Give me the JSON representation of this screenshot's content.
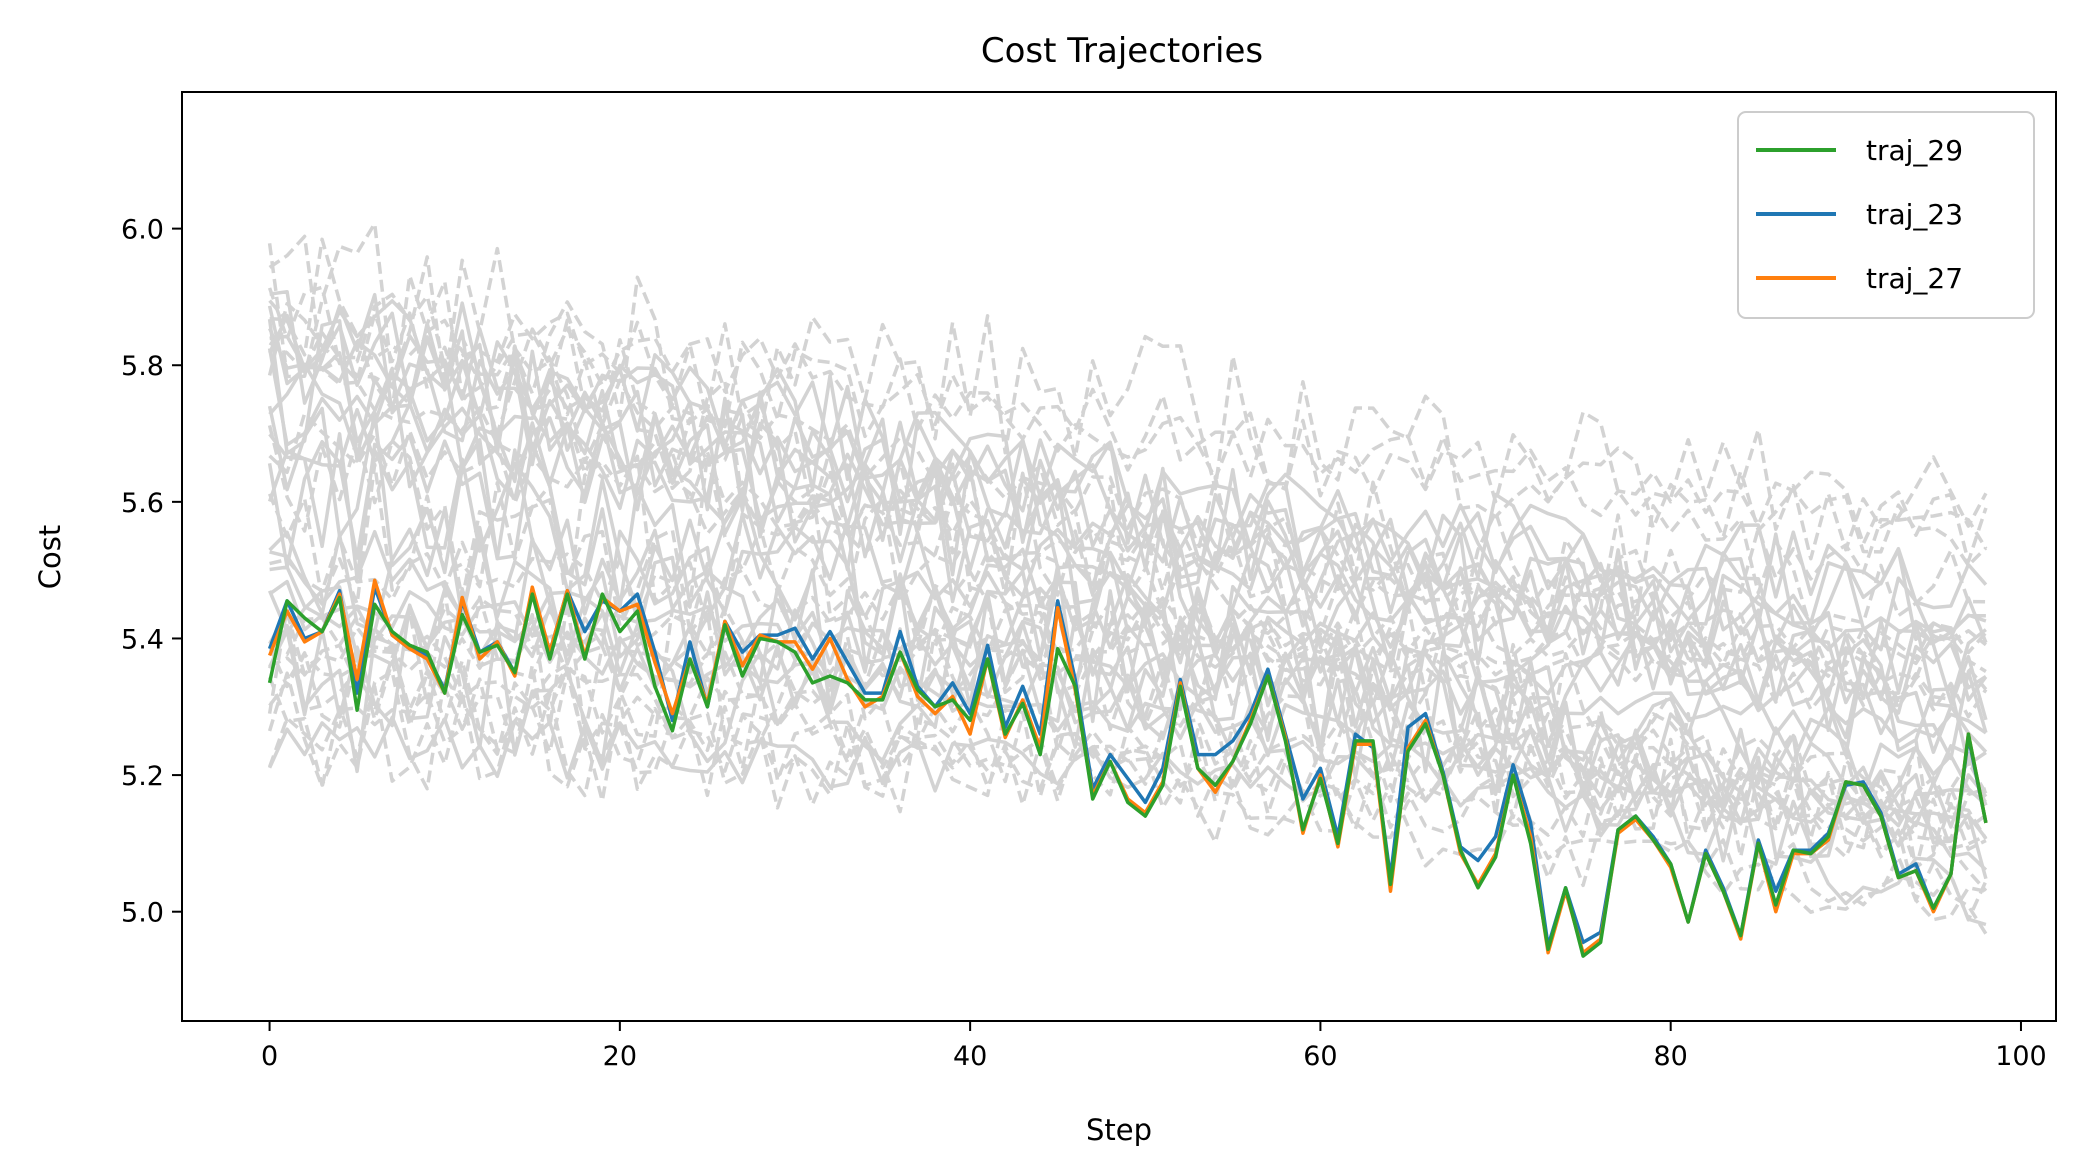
{
  "chart_data": {
    "type": "line",
    "title": "Cost Trajectories",
    "xlabel": "Step",
    "ylabel": "Cost",
    "xlim": [
      -5,
      102
    ],
    "ylim": [
      4.84,
      6.2
    ],
    "xticks": [
      0,
      20,
      40,
      60,
      80,
      100
    ],
    "yticks": [
      5.0,
      5.2,
      5.4,
      5.6,
      5.8,
      6.0
    ],
    "ytick_labels": [
      "5.0",
      "5.2",
      "5.4",
      "5.6",
      "5.8",
      "6.0"
    ],
    "grid": false,
    "legend_position": "top-right",
    "background_series_color": "#d3d3d3",
    "background_series_count": 40,
    "series": [
      {
        "name": "traj_29",
        "color": "#2ca02c",
        "x": [
          0,
          1,
          2,
          3,
          4,
          5,
          6,
          7,
          8,
          9,
          10,
          11,
          12,
          13,
          14,
          15,
          16,
          17,
          18,
          19,
          20,
          21,
          22,
          23,
          24,
          25,
          26,
          27,
          28,
          29,
          30,
          31,
          32,
          33,
          34,
          35,
          36,
          37,
          38,
          39,
          40,
          41,
          42,
          43,
          44,
          45,
          46,
          47,
          48,
          49,
          50,
          51,
          52,
          53,
          54,
          55,
          56,
          57,
          58,
          59,
          60,
          61,
          62,
          63,
          64,
          65,
          66,
          67,
          68,
          69,
          70,
          71,
          72,
          73,
          74,
          75,
          76,
          77,
          78,
          79,
          80,
          81,
          82,
          83,
          84,
          85,
          86,
          87,
          88,
          89,
          90,
          91,
          92,
          93,
          94,
          95,
          96,
          97,
          98
        ],
        "values": [
          5.335,
          5.455,
          5.43,
          5.41,
          5.46,
          5.295,
          5.45,
          5.41,
          5.39,
          5.38,
          5.32,
          5.435,
          5.38,
          5.39,
          5.35,
          5.465,
          5.37,
          5.465,
          5.37,
          5.465,
          5.41,
          5.44,
          5.33,
          5.265,
          5.37,
          5.3,
          5.42,
          5.345,
          5.4,
          5.395,
          5.38,
          5.335,
          5.345,
          5.335,
          5.31,
          5.31,
          5.38,
          5.325,
          5.3,
          5.31,
          5.28,
          5.37,
          5.26,
          5.305,
          5.23,
          5.385,
          5.33,
          5.165,
          5.22,
          5.16,
          5.14,
          5.185,
          5.33,
          5.21,
          5.185,
          5.22,
          5.275,
          5.345,
          5.25,
          5.12,
          5.195,
          5.1,
          5.25,
          5.25,
          5.04,
          5.235,
          5.275,
          5.2,
          5.09,
          5.035,
          5.08,
          5.2,
          5.1,
          4.945,
          5.035,
          4.935,
          4.955,
          5.12,
          5.14,
          5.105,
          5.07,
          4.985,
          5.085,
          5.03,
          4.965,
          5.1,
          5.01,
          5.09,
          5.085,
          5.11,
          5.19,
          5.185,
          5.14,
          5.05,
          5.06,
          5.005,
          5.055,
          5.26,
          5.13
        ]
      },
      {
        "name": "traj_23",
        "color": "#1f77b4",
        "x": [
          0,
          1,
          2,
          3,
          4,
          5,
          6,
          7,
          8,
          9,
          10,
          11,
          12,
          13,
          14,
          15,
          16,
          17,
          18,
          19,
          20,
          21,
          22,
          23,
          24,
          25,
          26,
          27,
          28,
          29,
          30,
          31,
          32,
          33,
          34,
          35,
          36,
          37,
          38,
          39,
          40,
          41,
          42,
          43,
          44,
          45,
          46,
          47,
          48,
          49,
          50,
          51,
          52,
          53,
          54,
          55,
          56,
          57,
          58,
          59,
          60,
          61,
          62,
          63,
          64,
          65,
          66,
          67,
          68,
          69,
          70,
          71,
          72,
          73,
          74,
          75,
          76,
          77,
          78,
          79,
          80,
          81,
          82,
          83,
          84,
          85,
          86,
          87,
          88,
          89,
          90,
          91,
          92,
          93,
          94,
          95,
          96,
          97,
          98
        ],
        "values": [
          5.385,
          5.455,
          5.4,
          5.41,
          5.47,
          5.32,
          5.475,
          5.405,
          5.385,
          5.375,
          5.325,
          5.455,
          5.38,
          5.395,
          5.35,
          5.47,
          5.38,
          5.47,
          5.41,
          5.455,
          5.44,
          5.465,
          5.38,
          5.28,
          5.395,
          5.3,
          5.425,
          5.38,
          5.405,
          5.405,
          5.415,
          5.37,
          5.41,
          5.365,
          5.32,
          5.32,
          5.41,
          5.33,
          5.3,
          5.335,
          5.29,
          5.39,
          5.27,
          5.33,
          5.26,
          5.455,
          5.34,
          5.18,
          5.23,
          5.195,
          5.16,
          5.21,
          5.34,
          5.23,
          5.23,
          5.25,
          5.29,
          5.355,
          5.26,
          5.165,
          5.21,
          5.11,
          5.26,
          5.24,
          5.05,
          5.27,
          5.29,
          5.205,
          5.095,
          5.075,
          5.11,
          5.215,
          5.13,
          4.95,
          5.035,
          4.955,
          4.97,
          5.12,
          5.14,
          5.11,
          5.07,
          4.985,
          5.09,
          5.035,
          4.965,
          5.105,
          5.03,
          5.09,
          5.09,
          5.115,
          5.185,
          5.19,
          5.145,
          5.055,
          5.07,
          5.005,
          5.055,
          5.255,
          5.13
        ]
      },
      {
        "name": "traj_27",
        "color": "#ff7f0e",
        "x": [
          0,
          1,
          2,
          3,
          4,
          5,
          6,
          7,
          8,
          9,
          10,
          11,
          12,
          13,
          14,
          15,
          16,
          17,
          18,
          19,
          20,
          21,
          22,
          23,
          24,
          25,
          26,
          27,
          28,
          29,
          30,
          31,
          32,
          33,
          34,
          35,
          36,
          37,
          38,
          39,
          40,
          41,
          42,
          43,
          44,
          45,
          46,
          47,
          48,
          49,
          50,
          51,
          52,
          53,
          54,
          55,
          56,
          57,
          58,
          59,
          60,
          61,
          62,
          63,
          64,
          65,
          66,
          67,
          68,
          69,
          70,
          71,
          72,
          73,
          74,
          75,
          76,
          77,
          78,
          79,
          80,
          81,
          82,
          83,
          84,
          85,
          86,
          87,
          88,
          89,
          90,
          91,
          92,
          93,
          94,
          95,
          96,
          97,
          98
        ],
        "values": [
          5.375,
          5.44,
          5.395,
          5.41,
          5.465,
          5.34,
          5.485,
          5.405,
          5.385,
          5.37,
          5.32,
          5.46,
          5.37,
          5.395,
          5.345,
          5.475,
          5.38,
          5.47,
          5.375,
          5.46,
          5.44,
          5.45,
          5.365,
          5.29,
          5.37,
          5.305,
          5.425,
          5.36,
          5.405,
          5.395,
          5.395,
          5.355,
          5.4,
          5.34,
          5.3,
          5.315,
          5.38,
          5.315,
          5.29,
          5.315,
          5.26,
          5.37,
          5.255,
          5.31,
          5.24,
          5.445,
          5.325,
          5.17,
          5.22,
          5.165,
          5.145,
          5.19,
          5.335,
          5.21,
          5.175,
          5.22,
          5.28,
          5.345,
          5.255,
          5.115,
          5.2,
          5.095,
          5.245,
          5.245,
          5.03,
          5.24,
          5.28,
          5.2,
          5.085,
          5.04,
          5.085,
          5.2,
          5.11,
          4.94,
          5.03,
          4.94,
          4.96,
          5.115,
          5.135,
          5.105,
          5.065,
          4.985,
          5.085,
          5.03,
          4.96,
          5.1,
          5.0,
          5.085,
          5.085,
          5.105,
          5.19,
          5.185,
          5.14,
          5.05,
          5.06,
          5.0,
          5.055,
          5.26,
          5.13
        ]
      }
    ]
  }
}
